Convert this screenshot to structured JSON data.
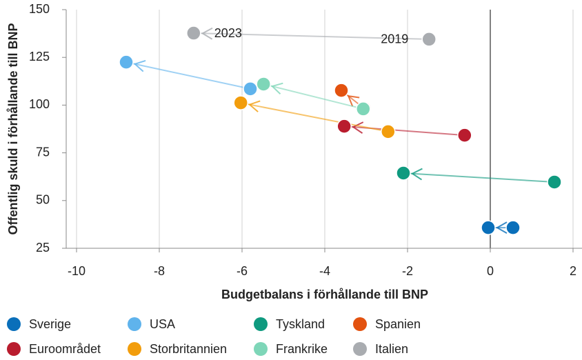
{
  "chart_data": {
    "type": "arrow-scatter",
    "x_label": "Budgetbalans i förhållande till BNP",
    "y_label": "Offentlig skuld i förhållande till BNP",
    "annotations": [
      "2019",
      "2023"
    ],
    "xlim": [
      -10.25,
      2.25
    ],
    "xticks": [
      -10,
      -8,
      -6,
      -4,
      -2,
      0,
      2
    ],
    "ylim": [
      25,
      150
    ],
    "yticks": [
      25,
      50,
      75,
      100,
      125,
      150
    ],
    "grid": "x",
    "series": [
      {
        "name": "Sverige",
        "color": "#0a6fba",
        "x": [
          0.55,
          -0.05
        ],
        "values": [
          35.8,
          35.8
        ]
      },
      {
        "name": "USA",
        "color": "#5fb3ec",
        "x": [
          -5.8,
          -8.8
        ],
        "values": [
          108.5,
          122.5
        ]
      },
      {
        "name": "Tyskland",
        "color": "#0f9a7f",
        "x": [
          1.55,
          -2.1
        ],
        "values": [
          59.7,
          64.4
        ]
      },
      {
        "name": "Spanien",
        "color": "#e3520f",
        "x": [
          -3.05,
          -3.6
        ],
        "values": [
          98.3,
          107.7
        ]
      },
      {
        "name": "Euroområdet",
        "color": "#b91c2e",
        "x": [
          -0.62,
          -3.53
        ],
        "values": [
          84.2,
          88.9
        ]
      },
      {
        "name": "Storbritannien",
        "color": "#f29d0c",
        "x": [
          -2.47,
          -6.03
        ],
        "values": [
          86.1,
          101.2
        ]
      },
      {
        "name": "Frankrike",
        "color": "#7ed6b8",
        "x": [
          -3.07,
          -5.48
        ],
        "values": [
          98.0,
          111.0
        ]
      },
      {
        "name": "Italien",
        "color": "#a9acb0",
        "x": [
          -1.48,
          -7.17
        ],
        "values": [
          134.5,
          137.7
        ]
      }
    ]
  }
}
